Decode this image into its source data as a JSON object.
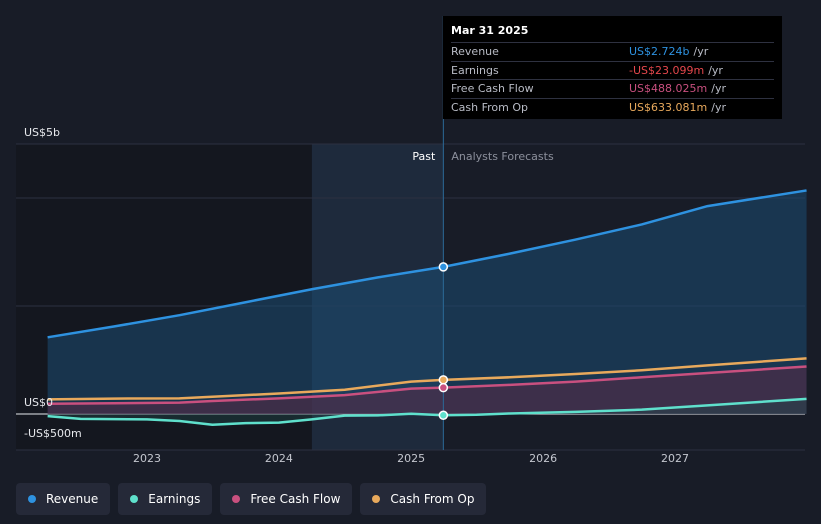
{
  "tooltip": {
    "date": "Mar 31 2025",
    "rows": [
      {
        "label": "Revenue",
        "value": "US$2.724b",
        "unit": "/yr",
        "color": "#2e92e0"
      },
      {
        "label": "Earnings",
        "value": "-US$23.099m",
        "unit": "/yr",
        "color": "#e5474c"
      },
      {
        "label": "Free Cash Flow",
        "value": "US$488.025m",
        "unit": "/yr",
        "color": "#c9507f"
      },
      {
        "label": "Cash From Op",
        "value": "US$633.081m",
        "unit": "/yr",
        "color": "#e8a95c"
      }
    ]
  },
  "labels": {
    "past": "Past",
    "forecast": "Analysts Forecasts"
  },
  "legend": [
    {
      "label": "Revenue",
      "color": "#2e92e0"
    },
    {
      "label": "Earnings",
      "color": "#5fe0cc"
    },
    {
      "label": "Free Cash Flow",
      "color": "#c9507f"
    },
    {
      "label": "Cash From Op",
      "color": "#e8a95c"
    }
  ],
  "chart_data": {
    "type": "line",
    "y_unit": "US$ millions",
    "ylim": [
      -500,
      5000
    ],
    "y_ticks": [
      {
        "value": 5000,
        "label": "US$5b"
      },
      {
        "value": 0,
        "label": "US$0"
      },
      {
        "value": -500,
        "label": "-US$500m"
      }
    ],
    "x_ticks": [
      {
        "value": "2023-01-01",
        "label": "2023"
      },
      {
        "value": "2024-01-01",
        "label": "2024"
      },
      {
        "value": "2025-01-01",
        "label": "2025"
      },
      {
        "value": "2026-01-01",
        "label": "2026"
      },
      {
        "value": "2027-01-01",
        "label": "2027"
      }
    ],
    "x_range": [
      "2022-04-01",
      "2027-12-31"
    ],
    "past_start": "2024-04-01",
    "forecast_start": "2025-03-31",
    "series": [
      {
        "name": "Revenue",
        "color": "#2e92e0",
        "fill": true,
        "points": [
          [
            "2022-04-01",
            1420
          ],
          [
            "2022-10-01",
            1620
          ],
          [
            "2023-04-01",
            1830
          ],
          [
            "2023-10-01",
            2070
          ],
          [
            "2024-04-01",
            2310
          ],
          [
            "2024-10-01",
            2530
          ],
          [
            "2025-03-31",
            2724
          ],
          [
            "2025-10-01",
            2970
          ],
          [
            "2026-04-01",
            3230
          ],
          [
            "2026-10-01",
            3510
          ],
          [
            "2027-04-01",
            3850
          ],
          [
            "2027-12-31",
            4140
          ]
        ]
      },
      {
        "name": "Cash From Op",
        "color": "#e8a95c",
        "fill": false,
        "points": [
          [
            "2022-04-01",
            270
          ],
          [
            "2022-10-01",
            285
          ],
          [
            "2023-04-01",
            290
          ],
          [
            "2023-07-01",
            320
          ],
          [
            "2024-01-01",
            380
          ],
          [
            "2024-07-01",
            450
          ],
          [
            "2025-01-01",
            600
          ],
          [
            "2025-03-31",
            633
          ],
          [
            "2025-10-01",
            680
          ],
          [
            "2026-04-01",
            740
          ],
          [
            "2026-10-01",
            810
          ],
          [
            "2027-04-01",
            900
          ],
          [
            "2027-12-31",
            1030
          ]
        ]
      },
      {
        "name": "Free Cash Flow",
        "color": "#c9507f",
        "fill": true,
        "points": [
          [
            "2022-04-01",
            190
          ],
          [
            "2022-10-01",
            200
          ],
          [
            "2023-04-01",
            210
          ],
          [
            "2023-07-01",
            240
          ],
          [
            "2024-01-01",
            290
          ],
          [
            "2024-07-01",
            350
          ],
          [
            "2025-01-01",
            470
          ],
          [
            "2025-03-31",
            488
          ],
          [
            "2025-10-01",
            540
          ],
          [
            "2026-04-01",
            600
          ],
          [
            "2026-10-01",
            680
          ],
          [
            "2027-04-01",
            760
          ],
          [
            "2027-12-31",
            880
          ]
        ]
      },
      {
        "name": "Earnings",
        "color": "#5fe0cc",
        "fill": true,
        "points": [
          [
            "2022-04-01",
            -40
          ],
          [
            "2022-07-01",
            -90
          ],
          [
            "2023-01-01",
            -100
          ],
          [
            "2023-04-01",
            -130
          ],
          [
            "2023-07-01",
            -200
          ],
          [
            "2023-10-01",
            -170
          ],
          [
            "2024-01-01",
            -160
          ],
          [
            "2024-04-01",
            -100
          ],
          [
            "2024-07-01",
            -30
          ],
          [
            "2024-10-01",
            -25
          ],
          [
            "2025-01-01",
            5
          ],
          [
            "2025-03-31",
            -23
          ],
          [
            "2025-07-01",
            -15
          ],
          [
            "2025-10-01",
            10
          ],
          [
            "2026-04-01",
            40
          ],
          [
            "2026-10-01",
            80
          ],
          [
            "2027-04-01",
            160
          ],
          [
            "2027-12-31",
            280
          ]
        ]
      }
    ]
  }
}
